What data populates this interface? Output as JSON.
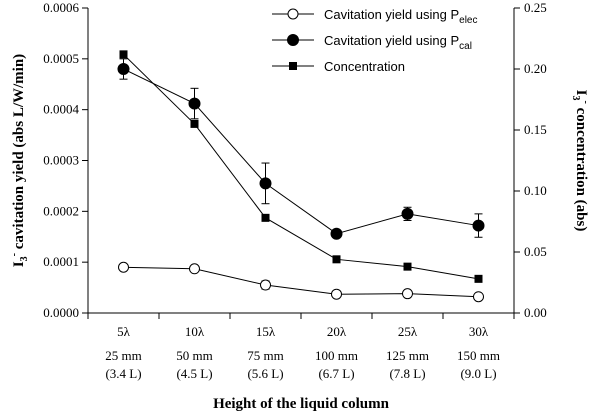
{
  "chart_data": {
    "type": "line",
    "categories": [
      [
        "5λ",
        "25 mm",
        "(3.4 L)"
      ],
      [
        "10λ",
        "50 mm",
        "(4.5 L)"
      ],
      [
        "15λ",
        "75 mm",
        "(5.6 L)"
      ],
      [
        "20λ",
        "100 mm",
        "(6.7 L)"
      ],
      [
        "25λ",
        "125 mm",
        "(7.8 L)"
      ],
      [
        "30λ",
        "150 mm",
        "(9.0 L)"
      ]
    ],
    "xlabel": "Height of the liquid column",
    "ylabel_left": "I3- cavitation yield (abs L/W/min)",
    "ylabel_right": "I3- concentration (abs)",
    "ylim_left": [
      0,
      0.0006
    ],
    "yticks_left": [
      "0.0000",
      "0.0001",
      "0.0002",
      "0.0003",
      "0.0004",
      "0.0005",
      "0.0006"
    ],
    "ylim_right": [
      0,
      0.25
    ],
    "yticks_right": [
      "0.00",
      "0.05",
      "0.10",
      "0.15",
      "0.20",
      "0.25"
    ],
    "series": [
      {
        "name": "Cavitation yield using P",
        "subscript": "elec",
        "axis": "left",
        "marker": "open-circle",
        "values": [
          9e-05,
          8.7e-05,
          5.5e-05,
          3.7e-05,
          3.8e-05,
          3.2e-05
        ],
        "errors": [
          0,
          0,
          8e-06,
          0,
          0,
          0
        ]
      },
      {
        "name": "Cavitation yield using P",
        "subscript": "cal",
        "axis": "left",
        "marker": "filled-circle",
        "values": [
          0.00048,
          0.000412,
          0.000255,
          0.000156,
          0.000195,
          0.000172
        ],
        "errors": [
          2e-05,
          3e-05,
          4e-05,
          0,
          1.3e-05,
          2.3e-05
        ]
      },
      {
        "name": "Concentration",
        "axis": "right",
        "marker": "filled-square",
        "values": [
          0.212,
          0.155,
          0.078,
          0.044,
          0.038,
          0.028
        ],
        "errors": [
          0,
          0,
          0,
          0,
          0,
          0
        ]
      }
    ],
    "legend_position": "top-right",
    "grid": false
  }
}
